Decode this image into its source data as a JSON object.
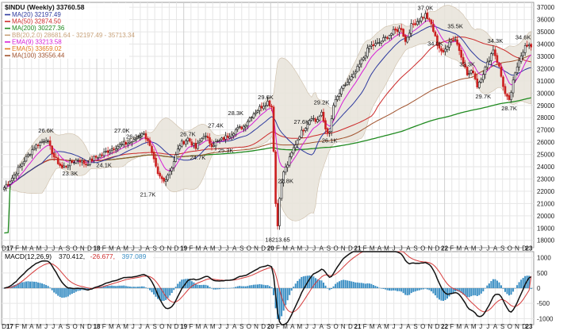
{
  "chart_data": [
    {
      "type": "candlestick",
      "title": "$INDU (Weekly) 33760.58",
      "legend": [
        {
          "label": "MA(20) 32197.49",
          "color": "#2e3a9e"
        },
        {
          "label": "MA(50) 32874.50",
          "color": "#cc2a2a"
        },
        {
          "label": "MA(200) 30227.36",
          "color": "#1f8a1f"
        },
        {
          "label": "BB(20,2.0) 28681.64 - 32197.49 - 35713.34",
          "color": "#c8a27a"
        },
        {
          "label": "EMA(9) 33213.58",
          "color": "#d61fd6"
        },
        {
          "label": "EMA(5) 33659.02",
          "color": "#e07a1f"
        },
        {
          "label": "MA(100) 33556.44",
          "color": "#a0522d"
        }
      ],
      "y_ticks": [
        "18000",
        "19000",
        "20000",
        "21000",
        "22000",
        "23000",
        "24000",
        "25000",
        "26000",
        "27000",
        "28000",
        "29000",
        "30000",
        "31000",
        "32000",
        "33000",
        "34000",
        "35000",
        "36000",
        "37000"
      ],
      "ylim": [
        17400,
        37400
      ],
      "x_ticks": [
        "D",
        "17",
        "F",
        "M",
        "A",
        "M",
        "J",
        "J",
        "A",
        "S",
        "O",
        "N",
        "D",
        "18",
        "F",
        "M",
        "A",
        "M",
        "J",
        "J",
        "A",
        "S",
        "O",
        "N",
        "D",
        "19",
        "F",
        "M",
        "A",
        "M",
        "J",
        "J",
        "A",
        "S",
        "O",
        "N",
        "D",
        "20",
        "F",
        "M",
        "A",
        "M",
        "J",
        "J",
        "A",
        "S",
        "O",
        "N",
        "D",
        "21",
        "F",
        "M",
        "A",
        "M",
        "J",
        "J",
        "A",
        "S",
        "O",
        "N",
        "D",
        "22",
        "F",
        "M",
        "A",
        "M",
        "J",
        "J",
        "A",
        "S",
        "O",
        "N",
        "D",
        "23"
      ],
      "x_ticks_bold": [
        "17",
        "18",
        "19",
        "20",
        "21",
        "22",
        "23"
      ],
      "anchors": [
        {
          "t": 0,
          "v": 22300
        },
        {
          "t": 4,
          "v": 23100
        },
        {
          "t": 10,
          "v": 24500
        },
        {
          "t": 15,
          "v": 25600
        },
        {
          "t": 21,
          "v": 26300
        },
        {
          "t": 25,
          "v": 24800
        },
        {
          "t": 29,
          "v": 23900
        },
        {
          "t": 33,
          "v": 24300
        },
        {
          "t": 37,
          "v": 24600
        },
        {
          "t": 41,
          "v": 24200
        },
        {
          "t": 45,
          "v": 24700
        },
        {
          "t": 49,
          "v": 25000
        },
        {
          "t": 53,
          "v": 25400
        },
        {
          "t": 57,
          "v": 25700
        },
        {
          "t": 61,
          "v": 25900
        },
        {
          "t": 65,
          "v": 26100
        },
        {
          "t": 69,
          "v": 26800
        },
        {
          "t": 72,
          "v": 26200
        },
        {
          "t": 77,
          "v": 23300
        },
        {
          "t": 80,
          "v": 22800
        },
        {
          "t": 84,
          "v": 24000
        },
        {
          "t": 88,
          "v": 25800
        },
        {
          "t": 92,
          "v": 26300
        },
        {
          "t": 96,
          "v": 25500
        },
        {
          "t": 100,
          "v": 26600
        },
        {
          "t": 104,
          "v": 25800
        },
        {
          "t": 108,
          "v": 26100
        },
        {
          "t": 112,
          "v": 26500
        },
        {
          "t": 116,
          "v": 27000
        },
        {
          "t": 120,
          "v": 27300
        },
        {
          "t": 124,
          "v": 28200
        },
        {
          "t": 128,
          "v": 28800
        },
        {
          "t": 132,
          "v": 29300
        },
        {
          "t": 134,
          "v": 28900
        },
        {
          "t": 135,
          "v": 25400
        },
        {
          "t": 136,
          "v": 21000
        },
        {
          "t": 137,
          "v": 19200
        },
        {
          "t": 138,
          "v": 21600
        },
        {
          "t": 140,
          "v": 23600
        },
        {
          "t": 142,
          "v": 24200
        },
        {
          "t": 145,
          "v": 25500
        },
        {
          "t": 148,
          "v": 26600
        },
        {
          "t": 151,
          "v": 27300
        },
        {
          "t": 154,
          "v": 28100
        },
        {
          "t": 156,
          "v": 27700
        },
        {
          "t": 159,
          "v": 28300
        },
        {
          "t": 161,
          "v": 27100
        },
        {
          "t": 163,
          "v": 26700
        },
        {
          "t": 165,
          "v": 29000
        },
        {
          "t": 168,
          "v": 30000
        },
        {
          "t": 171,
          "v": 30700
        },
        {
          "t": 175,
          "v": 31400
        },
        {
          "t": 179,
          "v": 32600
        },
        {
          "t": 183,
          "v": 33800
        },
        {
          "t": 187,
          "v": 34000
        },
        {
          "t": 191,
          "v": 34500
        },
        {
          "t": 195,
          "v": 35000
        },
        {
          "t": 199,
          "v": 35300
        },
        {
          "t": 201,
          "v": 34200
        },
        {
          "t": 204,
          "v": 35500
        },
        {
          "t": 208,
          "v": 36000
        },
        {
          "t": 211,
          "v": 36400
        },
        {
          "t": 214,
          "v": 35600
        },
        {
          "t": 217,
          "v": 34000
        },
        {
          "t": 220,
          "v": 33200
        },
        {
          "t": 223,
          "v": 34300
        },
        {
          "t": 226,
          "v": 34400
        },
        {
          "t": 229,
          "v": 33100
        },
        {
          "t": 232,
          "v": 31500
        },
        {
          "t": 235,
          "v": 31800
        },
        {
          "t": 237,
          "v": 30600
        },
        {
          "t": 239,
          "v": 31300
        },
        {
          "t": 242,
          "v": 32400
        },
        {
          "t": 245,
          "v": 33600
        },
        {
          "t": 248,
          "v": 32100
        },
        {
          "t": 251,
          "v": 29900
        },
        {
          "t": 253,
          "v": 29300
        },
        {
          "t": 255,
          "v": 30900
        },
        {
          "t": 258,
          "v": 32800
        },
        {
          "t": 261,
          "v": 33800
        },
        {
          "t": 264,
          "v": 33760
        }
      ],
      "price_labels": [
        {
          "text": "26.6K",
          "t": 21,
          "v": 26600,
          "pos": "above"
        },
        {
          "text": "23.3K",
          "t": 33,
          "v": 23800,
          "pos": "below"
        },
        {
          "text": "27.0K",
          "t": 59,
          "v": 26600,
          "pos": "above"
        },
        {
          "text": "26.3K",
          "t": 65,
          "v": 26100,
          "pos": "above"
        },
        {
          "text": "24.1K",
          "t": 50,
          "v": 24500,
          "pos": "below"
        },
        {
          "text": "21.7K",
          "t": 72,
          "v": 22100,
          "pos": "below"
        },
        {
          "text": "26.7K",
          "t": 92,
          "v": 26300,
          "pos": "above"
        },
        {
          "text": "24.7K",
          "t": 97,
          "v": 25100,
          "pos": "below"
        },
        {
          "text": "27.4K",
          "t": 106,
          "v": 27000,
          "pos": "above"
        },
        {
          "text": "25.3K",
          "t": 111,
          "v": 25700,
          "pos": "below"
        },
        {
          "text": "28.3K",
          "t": 116,
          "v": 28000,
          "pos": "above"
        },
        {
          "text": "29.6K",
          "t": 131,
          "v": 29300,
          "pos": "above"
        },
        {
          "text": "18213.65",
          "t": 137,
          "v": 18400,
          "pos": "below"
        },
        {
          "text": "22.8K",
          "t": 141,
          "v": 23200,
          "pos": "below"
        },
        {
          "text": "27.6K",
          "t": 149,
          "v": 27300,
          "pos": "above"
        },
        {
          "text": "29.2K",
          "t": 159,
          "v": 28900,
          "pos": "above"
        },
        {
          "text": "26.1K",
          "t": 163,
          "v": 26500,
          "pos": "below"
        },
        {
          "text": "37.0K",
          "t": 211,
          "v": 36600,
          "pos": "above"
        },
        {
          "text": "34.0K",
          "t": 216,
          "v": 34400,
          "pos": "below"
        },
        {
          "text": "35.5K",
          "t": 226,
          "v": 35100,
          "pos": "above"
        },
        {
          "text": "32.3K",
          "t": 232,
          "v": 32700,
          "pos": "below"
        },
        {
          "text": "34.3K",
          "t": 246,
          "v": 33900,
          "pos": "above"
        },
        {
          "text": "29.7K",
          "t": 240,
          "v": 30100,
          "pos": "below"
        },
        {
          "text": "28.7K",
          "t": 253,
          "v": 29100,
          "pos": "below"
        },
        {
          "text": "34.6K",
          "t": 260,
          "v": 34200,
          "pos": "above"
        }
      ]
    },
    {
      "type": "histogram+line",
      "title": "MACD(12,26,9)",
      "values_text": [
        "370.412,",
        "-26.677,",
        "397.089"
      ],
      "value_colors": [
        "#111111",
        "#cc2a2a",
        "#3b8fc4"
      ],
      "y_ticks": [
        "1000",
        "500",
        "0",
        "-500",
        "-1000"
      ],
      "ylim": [
        -1200,
        1200
      ]
    }
  ],
  "colors": {
    "candle_up": "#1a1a1a",
    "candle_down": "#cc1f1f",
    "bb_fill": "#e9e5dc",
    "grid": "#e6e6e6",
    "macd_line": "#111111",
    "signal_line": "#d63b3b",
    "histogram": "#3b8fc4"
  }
}
